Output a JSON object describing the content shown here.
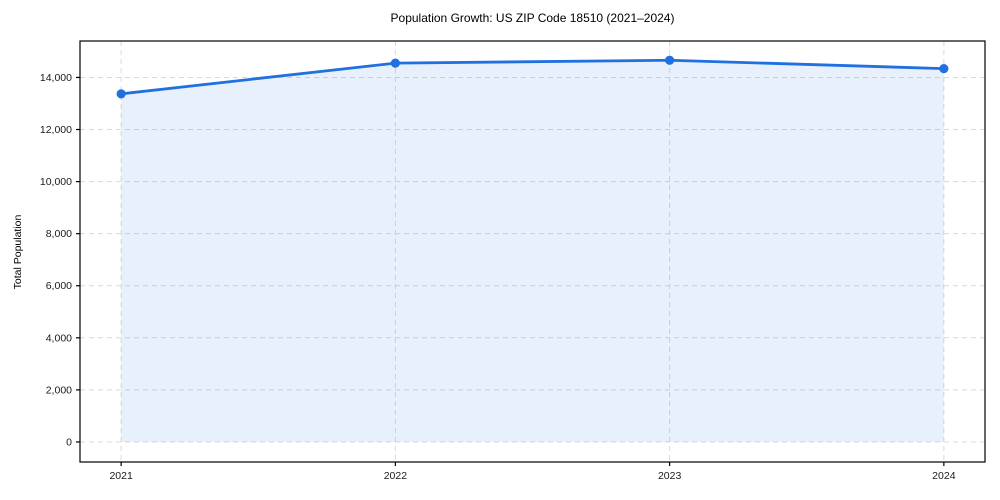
{
  "chart_data": {
    "type": "area",
    "title": "Population Growth: US ZIP Code 18510 (2021–2024)",
    "xlabel": "",
    "ylabel": "Total Population",
    "x": [
      2021,
      2022,
      2023,
      2024
    ],
    "x_tick_labels": [
      "2021",
      "2022",
      "2023",
      "2024"
    ],
    "series": [
      {
        "name": "Total Population",
        "values": [
          13370,
          14550,
          14660,
          14340
        ]
      }
    ],
    "yticks": [
      0,
      2000,
      4000,
      6000,
      8000,
      10000,
      12000,
      14000
    ],
    "y_tick_labels": [
      "0",
      "2,000",
      "4,000",
      "6,000",
      "8,000",
      "10,000",
      "12,000",
      "14,000"
    ],
    "ylim": [
      -770,
      15400
    ],
    "xlim": [
      2020.85,
      2024.15
    ],
    "grid": true,
    "grid_style": "dashed",
    "legend_position": "none",
    "colors": {
      "line": "#2170e0",
      "marker": "#2170e0",
      "fill": "#2170e0",
      "fill_opacity": "0.10",
      "grid": "#d9d9d9",
      "frame": "#000000",
      "text": "#1a1a1a",
      "background": "#ffffff"
    }
  }
}
